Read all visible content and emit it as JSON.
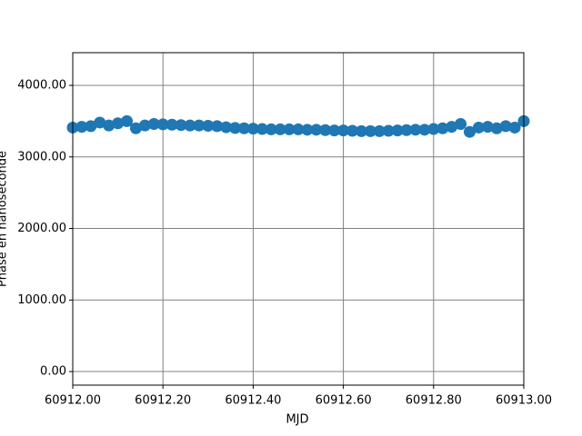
{
  "chart_data": {
    "type": "scatter",
    "xlabel": "MJD",
    "ylabel": "Phase en nanoseconde",
    "color": "#1f77b4",
    "grid": true,
    "xlim": [
      60912.0,
      60913.0
    ],
    "ylim": [
      -190,
      4457
    ],
    "xticks": [
      {
        "value": 60912.0,
        "label": "60912.00"
      },
      {
        "value": 60912.2,
        "label": "60912.20"
      },
      {
        "value": 60912.4,
        "label": "60912.40"
      },
      {
        "value": 60912.6,
        "label": "60912.60"
      },
      {
        "value": 60912.8,
        "label": "60912.80"
      },
      {
        "value": 60913.0,
        "label": "60913.00"
      }
    ],
    "yticks": [
      {
        "value": 0,
        "label": "0.00"
      },
      {
        "value": 1000,
        "label": "1000.00"
      },
      {
        "value": 2000,
        "label": "2000.00"
      },
      {
        "value": 3000,
        "label": "3000.00"
      },
      {
        "value": 4000,
        "label": "4000.00"
      }
    ],
    "x": [
      60912.0,
      60912.02,
      60912.04,
      60912.06,
      60912.08,
      60912.1,
      60912.12,
      60912.14,
      60912.16,
      60912.18,
      60912.2,
      60912.22,
      60912.24,
      60912.26,
      60912.28,
      60912.3,
      60912.32,
      60912.34,
      60912.36,
      60912.38,
      60912.4,
      60912.42,
      60912.44,
      60912.46,
      60912.48,
      60912.5,
      60912.52,
      60912.54,
      60912.56,
      60912.58,
      60912.6,
      60912.62,
      60912.64,
      60912.66,
      60912.68,
      60912.7,
      60912.72,
      60912.74,
      60912.76,
      60912.78,
      60912.8,
      60912.82,
      60912.84,
      60912.86,
      60912.88,
      60912.9,
      60912.92,
      60912.94,
      60912.96,
      60912.98,
      60913.0
    ],
    "values": [
      3410,
      3420,
      3430,
      3480,
      3440,
      3470,
      3500,
      3400,
      3440,
      3460,
      3455,
      3450,
      3445,
      3440,
      3440,
      3435,
      3430,
      3415,
      3405,
      3400,
      3395,
      3390,
      3385,
      3385,
      3385,
      3385,
      3380,
      3380,
      3375,
      3370,
      3370,
      3365,
      3360,
      3360,
      3360,
      3365,
      3370,
      3375,
      3380,
      3380,
      3390,
      3400,
      3420,
      3460,
      3350,
      3410,
      3420,
      3400,
      3430,
      3410,
      3500
    ]
  }
}
